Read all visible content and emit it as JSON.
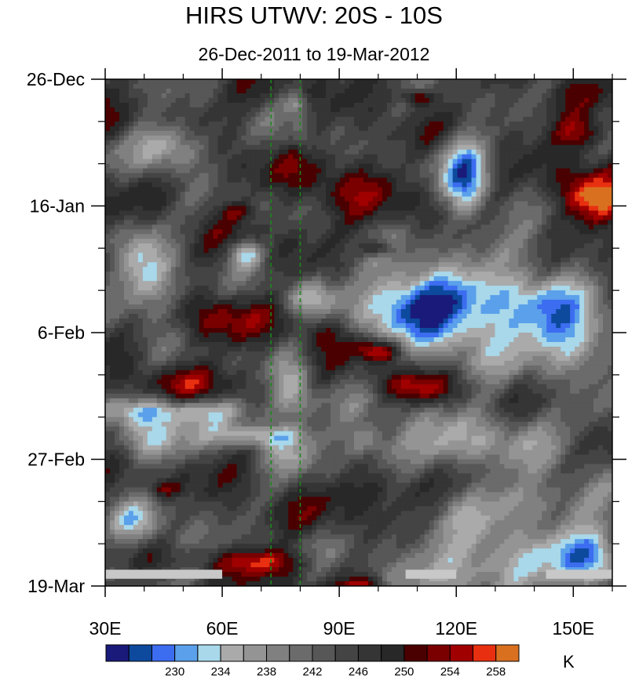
{
  "chart_data": {
    "type": "heatmap",
    "title": "HIRS UTWV: 20S - 10S",
    "subtitle": "26-Dec-2011 to 19-Mar-2012",
    "units": "K",
    "x_range": [
      30,
      160
    ],
    "x_ticks": [
      {
        "value": 30,
        "label": "30E"
      },
      {
        "value": 60,
        "label": "60E"
      },
      {
        "value": 90,
        "label": "90E"
      },
      {
        "value": 120,
        "label": "120E"
      },
      {
        "value": 150,
        "label": "150E"
      }
    ],
    "y_range": [
      "2011-12-26",
      "2012-03-19"
    ],
    "y_ticks": [
      {
        "day": 0,
        "label": "26-Dec"
      },
      {
        "day": 21,
        "label": "16-Jan"
      },
      {
        "day": 42,
        "label": "6-Feb"
      },
      {
        "day": 63,
        "label": "27-Feb"
      },
      {
        "day": 84,
        "label": "19-Mar"
      }
    ],
    "reference_lines_x": [
      72.5,
      80
    ],
    "colorbar": {
      "levels": [
        226,
        228,
        230,
        232,
        234,
        236,
        238,
        240,
        242,
        244,
        246,
        248,
        250,
        252,
        254,
        256,
        258,
        260
      ],
      "tick_labels": [
        "230",
        "234",
        "238",
        "242",
        "246",
        "250",
        "254",
        "258"
      ],
      "colors": [
        "#1a1a7a",
        "#0d4a9e",
        "#3c6df0",
        "#5aa0ea",
        "#a8d8ea",
        "#aaaaaa",
        "#949494",
        "#808080",
        "#6b6b6b",
        "#575757",
        "#444444",
        "#353535",
        "#282828",
        "#4a0000",
        "#7a0000",
        "#a00000",
        "#e83010",
        "#d87020"
      ]
    }
  }
}
